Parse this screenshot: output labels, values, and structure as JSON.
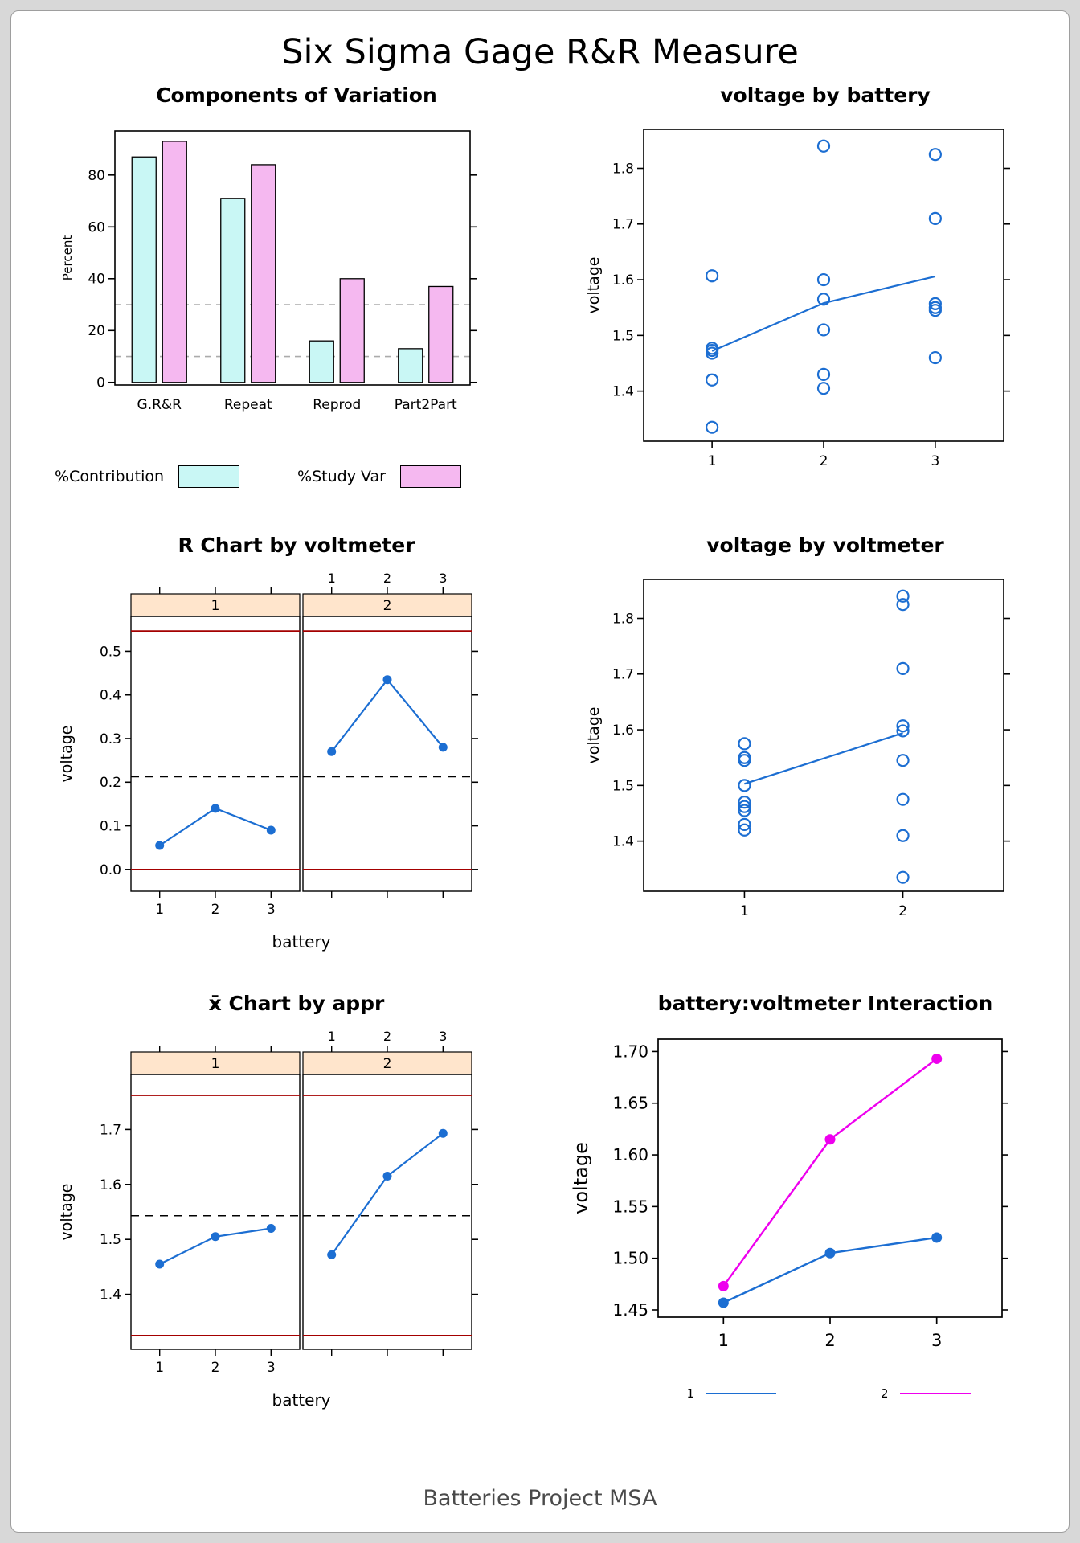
{
  "page": {
    "title": "Six Sigma Gage R&R Measure",
    "caption": "Batteries Project MSA"
  },
  "chart_data": [
    {
      "type": "bar",
      "title": "Components of Variation",
      "categories": [
        "G.R&R",
        "Repeat",
        "Reprod",
        "Part2Part"
      ],
      "series": [
        {
          "name": "%Contribution",
          "color": "#C9F7F5",
          "values": [
            87,
            71,
            16,
            13
          ]
        },
        {
          "name": "%Study Var",
          "color": "#F5B8F0",
          "values": [
            93,
            84,
            40,
            37
          ]
        }
      ],
      "ylabel": "Percent",
      "yticks": [
        "0",
        "20",
        "40",
        "60",
        "80"
      ],
      "ylim": [
        -1,
        97
      ],
      "dashed_lines": [
        10,
        30
      ],
      "dashed_color": "#ABABAB",
      "legend_position": "below"
    },
    {
      "type": "scatter",
      "title": "voltage by battery",
      "ylabel": "voltage",
      "yticks": [
        "1.4",
        "1.5",
        "1.6",
        "1.7",
        "1.8"
      ],
      "ylim": [
        1.31,
        1.87
      ],
      "point_color": "#1C6ED2",
      "groups": [
        {
          "x": "1",
          "values": [
            1.607,
            1.477,
            1.473,
            1.468,
            1.42,
            1.335
          ]
        },
        {
          "x": "2",
          "values": [
            1.84,
            1.6,
            1.565,
            1.51,
            1.43,
            1.405
          ]
        },
        {
          "x": "3",
          "values": [
            1.825,
            1.71,
            1.557,
            1.55,
            1.545,
            1.46
          ]
        }
      ],
      "means": [
        1.472,
        1.558,
        1.606
      ]
    },
    {
      "type": "lattice_control",
      "title": "R Chart by voltmeter",
      "strip_labels": [
        "1",
        "2"
      ],
      "strip_fill": "#FFE5CC",
      "x_categories": [
        "1",
        "2",
        "3"
      ],
      "xlabel": "battery",
      "ylabel": "voltage",
      "yticks": [
        "0.0",
        "0.1",
        "0.2",
        "0.3",
        "0.4",
        "0.5"
      ],
      "ylim": [
        -0.05,
        0.58
      ],
      "panels": [
        [
          0.055,
          0.14,
          0.09
        ],
        [
          0.27,
          0.435,
          0.28
        ]
      ],
      "center_line": 0.2125,
      "ucl": 0.5466,
      "lcl": 0,
      "limit_color": "#A40000",
      "point_color": "#1C6ED2"
    },
    {
      "type": "scatter",
      "title": "voltage by voltmeter",
      "ylabel": "voltage",
      "yticks": [
        "1.4",
        "1.5",
        "1.6",
        "1.7",
        "1.8"
      ],
      "ylim": [
        1.31,
        1.87
      ],
      "point_color": "#1C6ED2",
      "groups": [
        {
          "x": "1",
          "values": [
            1.575,
            1.55,
            1.545,
            1.5,
            1.47,
            1.462,
            1.455,
            1.43,
            1.42
          ]
        },
        {
          "x": "2",
          "values": [
            1.84,
            1.825,
            1.71,
            1.607,
            1.598,
            1.545,
            1.475,
            1.41,
            1.335
          ]
        }
      ],
      "means": [
        1.503,
        1.594
      ]
    },
    {
      "type": "lattice_control",
      "title": "x̄ Chart by appr",
      "strip_labels": [
        "1",
        "2"
      ],
      "strip_fill": "#FFE5CC",
      "x_categories": [
        "1",
        "2",
        "3"
      ],
      "xlabel": "battery",
      "ylabel": "voltage",
      "yticks": [
        "1.4",
        "1.5",
        "1.6",
        "1.7"
      ],
      "ylim": [
        1.3,
        1.8
      ],
      "panels": [
        [
          1.455,
          1.505,
          1.52
        ],
        [
          1.472,
          1.615,
          1.693
        ]
      ],
      "center_line": 1.543,
      "ucl": 1.762,
      "lcl": 1.325,
      "limit_color": "#A40000",
      "point_color": "#1C6ED2"
    },
    {
      "type": "line",
      "title": "battery:voltmeter Interaction",
      "ylabel": "voltage",
      "x_categories": [
        "1",
        "2",
        "3"
      ],
      "yticks": [
        "1.45",
        "1.50",
        "1.55",
        "1.60",
        "1.65",
        "1.70"
      ],
      "ylim": [
        1.443,
        1.712
      ],
      "series": [
        {
          "name": "1",
          "color": "#1C6ED2",
          "values": [
            1.457,
            1.505,
            1.52
          ]
        },
        {
          "name": "2",
          "color": "#EE00EE",
          "values": [
            1.473,
            1.615,
            1.693
          ]
        }
      ]
    }
  ]
}
